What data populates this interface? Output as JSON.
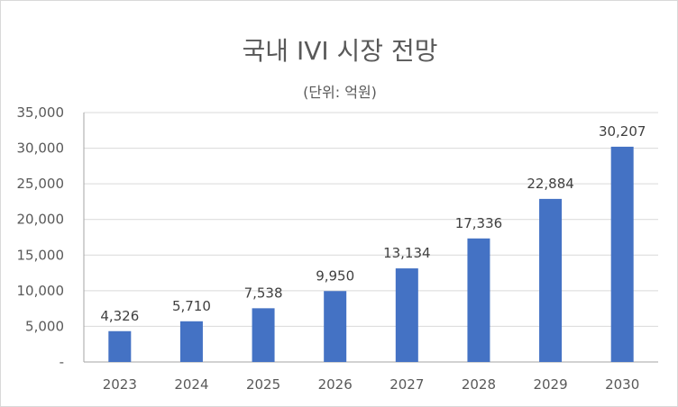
{
  "chart_data": {
    "type": "bar",
    "title": "국내 IVI 시장 전망",
    "subtitle": "(단위: 억원)",
    "categories": [
      "2023",
      "2024",
      "2025",
      "2026",
      "2027",
      "2028",
      "2029",
      "2030"
    ],
    "values": [
      4326,
      5710,
      7538,
      9950,
      13134,
      17336,
      22884,
      30207
    ],
    "data_labels": [
      "4,326",
      "5,710",
      "7,538",
      "9,950",
      "13,134",
      "17,336",
      "22,884",
      "30,207"
    ],
    "ylim": [
      0,
      35000
    ],
    "yticks": [
      0,
      5000,
      10000,
      15000,
      20000,
      25000,
      30000,
      35000
    ],
    "ytick_labels": [
      "-",
      "5,000",
      "10,000",
      "15,000",
      "20,000",
      "25,000",
      "30,000",
      "35,000"
    ],
    "grid": true,
    "legend": "none",
    "colors": {
      "bar": "#4472C4",
      "grid": "#d9d9d9",
      "text": "#595959"
    }
  }
}
